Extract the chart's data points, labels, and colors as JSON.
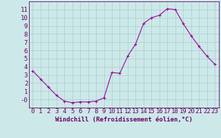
{
  "x": [
    0,
    1,
    2,
    3,
    4,
    5,
    6,
    7,
    8,
    9,
    10,
    11,
    12,
    13,
    14,
    15,
    16,
    17,
    18,
    19,
    20,
    21,
    22,
    23
  ],
  "y": [
    3.5,
    2.5,
    1.5,
    0.5,
    -0.2,
    -0.4,
    -0.3,
    -0.3,
    -0.2,
    0.2,
    3.3,
    3.2,
    5.3,
    6.8,
    9.3,
    10.0,
    10.3,
    11.1,
    11.0,
    9.3,
    7.8,
    6.5,
    5.3,
    4.3
  ],
  "line_color": "#990099",
  "marker": "+",
  "bg_color": "#cce8e8",
  "grid_color": "#aacccc",
  "xlabel": "Windchill (Refroidissement éolien,°C)",
  "ylim": [
    -1,
    12
  ],
  "xlim": [
    -0.5,
    23.5
  ],
  "ytick_labels": [
    "-0",
    "1",
    "2",
    "3",
    "4",
    "5",
    "6",
    "7",
    "8",
    "9",
    "10",
    "11"
  ],
  "ytick_vals": [
    0,
    1,
    2,
    3,
    4,
    5,
    6,
    7,
    8,
    9,
    10,
    11
  ],
  "xticks": [
    0,
    1,
    2,
    3,
    4,
    5,
    6,
    7,
    8,
    9,
    10,
    11,
    12,
    13,
    14,
    15,
    16,
    17,
    18,
    19,
    20,
    21,
    22,
    23
  ],
  "xlabel_fontsize": 6.5,
  "tick_fontsize": 6.5,
  "label_color": "#660066",
  "spine_color": "#660066"
}
